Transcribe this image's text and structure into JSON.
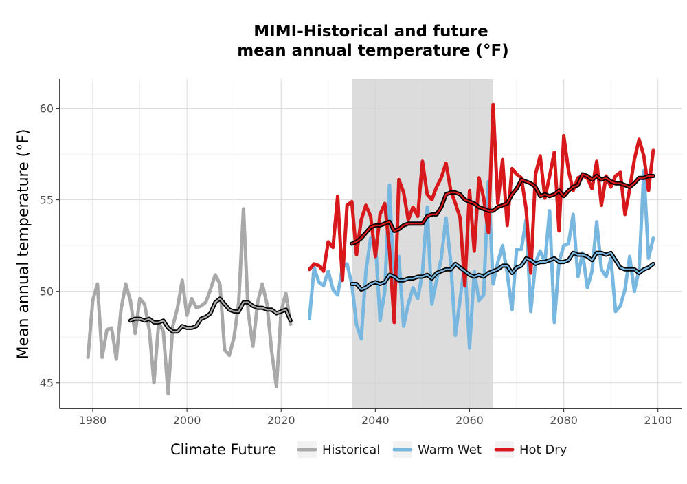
{
  "chart_data": {
    "type": "line",
    "title_line1": "MIMI-Historical and future",
    "title_line2": "mean annual temperature (°F)",
    "xlabel": "",
    "ylabel": "Mean annual temperature (°F)",
    "xlim": [
      1973,
      2105
    ],
    "ylim": [
      43.6,
      61.6
    ],
    "x_ticks": [
      1980,
      2000,
      2020,
      2040,
      2060,
      2080,
      2100
    ],
    "y_ticks": [
      45,
      50,
      55,
      60
    ],
    "grid": true,
    "reference_period": [
      2035,
      2065
    ],
    "legend_title": "Climate Future",
    "legend_position": "bottom",
    "series": [
      {
        "name": "Historical",
        "color": "#a9a9a9",
        "x": [
          1979,
          1980,
          1981,
          1982,
          1983,
          1984,
          1985,
          1986,
          1987,
          1988,
          1989,
          1990,
          1991,
          1992,
          1993,
          1994,
          1995,
          1996,
          1997,
          1998,
          1999,
          2000,
          2001,
          2002,
          2003,
          2004,
          2005,
          2006,
          2007,
          2008,
          2009,
          2010,
          2011,
          2012,
          2013,
          2014,
          2015,
          2016,
          2017,
          2018,
          2019,
          2020,
          2021,
          2022
        ],
        "values": [
          46.4,
          49.5,
          50.4,
          46.4,
          47.9,
          48.0,
          46.3,
          49.0,
          50.4,
          49.5,
          47.7,
          49.6,
          49.3,
          47.9,
          45.0,
          48.3,
          47.8,
          44.4,
          48.1,
          49.1,
          50.6,
          48.7,
          49.6,
          49.1,
          49.2,
          49.4,
          50.1,
          50.9,
          50.4,
          46.8,
          46.5,
          47.5,
          49.4,
          54.5,
          48.9,
          47.0,
          49.4,
          50.4,
          49.3,
          46.7,
          44.8,
          48.9,
          49.9,
          48.2
        ]
      },
      {
        "name": "Warm Wet",
        "color": "#78b8e0",
        "x": [
          2026,
          2027,
          2028,
          2029,
          2030,
          2031,
          2032,
          2033,
          2034,
          2035,
          2036,
          2037,
          2038,
          2039,
          2040,
          2041,
          2042,
          2043,
          2044,
          2045,
          2046,
          2047,
          2048,
          2049,
          2050,
          2051,
          2052,
          2053,
          2054,
          2055,
          2056,
          2057,
          2058,
          2059,
          2060,
          2061,
          2062,
          2063,
          2064,
          2065,
          2066,
          2067,
          2068,
          2069,
          2070,
          2071,
          2072,
          2073,
          2074,
          2075,
          2076,
          2077,
          2078,
          2079,
          2080,
          2081,
          2082,
          2083,
          2084,
          2085,
          2086,
          2087,
          2088,
          2089,
          2090,
          2091,
          2092,
          2093,
          2094,
          2095,
          2096,
          2097,
          2098,
          2099
        ],
        "values": [
          48.5,
          51.3,
          50.5,
          50.3,
          51.1,
          50.1,
          49.8,
          51.3,
          51.5,
          50.4,
          48.2,
          47.4,
          51.1,
          52.9,
          52.8,
          48.4,
          50.0,
          55.8,
          49.9,
          51.9,
          48.1,
          49.3,
          50.2,
          49.6,
          51.0,
          54.6,
          49.3,
          50.6,
          51.8,
          54.0,
          51.6,
          47.6,
          49.6,
          51.5,
          46.9,
          51.1,
          49.5,
          49.8,
          56.0,
          50.4,
          51.6,
          52.5,
          51.0,
          49.0,
          52.3,
          52.3,
          53.9,
          48.9,
          51.6,
          52.2,
          51.6,
          54.4,
          48.3,
          51.6,
          52.5,
          52.6,
          54.2,
          50.8,
          52.1,
          50.2,
          51.1,
          53.8,
          51.2,
          50.8,
          51.8,
          48.9,
          49.2,
          50.1,
          51.9,
          50.0,
          51.2,
          56.6,
          51.8,
          52.9
        ]
      },
      {
        "name": "Hot Dry",
        "color": "#d7191c",
        "x": [
          2026,
          2027,
          2028,
          2029,
          2030,
          2031,
          2032,
          2033,
          2034,
          2035,
          2036,
          2037,
          2038,
          2039,
          2040,
          2041,
          2042,
          2043,
          2044,
          2045,
          2046,
          2047,
          2048,
          2049,
          2050,
          2051,
          2052,
          2053,
          2054,
          2055,
          2056,
          2057,
          2058,
          2059,
          2060,
          2061,
          2062,
          2063,
          2064,
          2065,
          2066,
          2067,
          2068,
          2069,
          2070,
          2071,
          2072,
          2073,
          2074,
          2075,
          2076,
          2077,
          2078,
          2079,
          2080,
          2081,
          2082,
          2083,
          2084,
          2085,
          2086,
          2087,
          2088,
          2089,
          2090,
          2091,
          2092,
          2093,
          2094,
          2095,
          2096,
          2097,
          2098,
          2099
        ],
        "values": [
          51.2,
          51.5,
          51.4,
          51.1,
          52.7,
          52.4,
          55.2,
          50.6,
          54.7,
          54.9,
          52.0,
          53.9,
          54.7,
          54.1,
          51.9,
          54.2,
          54.8,
          52.3,
          48.3,
          56.1,
          55.4,
          53.9,
          54.6,
          54.1,
          57.1,
          55.3,
          55.0,
          55.7,
          56.2,
          57.0,
          55.5,
          54.8,
          54.0,
          50.3,
          55.5,
          52.2,
          56.2,
          55.1,
          53.2,
          60.2,
          54.8,
          57.2,
          53.6,
          56.7,
          56.4,
          56.2,
          54.5,
          51.0,
          56.4,
          57.4,
          55.1,
          56.3,
          57.6,
          53.3,
          58.5,
          56.6,
          55.5,
          56.2,
          56.3,
          56.2,
          55.6,
          57.1,
          54.7,
          56.3,
          55.7,
          56.3,
          56.5,
          54.2,
          55.6,
          57.2,
          58.3,
          57.4,
          55.5,
          57.7
        ]
      }
    ],
    "smoothed_series": [
      {
        "name": "Historical",
        "x": [
          1988,
          1989,
          1990,
          1991,
          1992,
          1993,
          1994,
          1995,
          1996,
          1997,
          1998,
          1999,
          2000,
          2001,
          2002,
          2003,
          2004,
          2005,
          2006,
          2007,
          2008,
          2009,
          2010,
          2011,
          2012,
          2013,
          2014,
          2015,
          2016,
          2017,
          2018,
          2019,
          2020,
          2021,
          2022
        ],
        "values": [
          48.4,
          48.5,
          48.5,
          48.4,
          48.5,
          48.3,
          48.3,
          48.4,
          48.0,
          47.8,
          47.8,
          48.1,
          48.0,
          48.0,
          48.1,
          48.5,
          48.6,
          48.8,
          49.4,
          49.6,
          49.3,
          49.0,
          48.9,
          48.9,
          49.4,
          49.4,
          49.2,
          49.1,
          49.1,
          49.0,
          49.0,
          48.8,
          48.9,
          49.0,
          48.4
        ]
      },
      {
        "name": "Warm Wet",
        "x": [
          2035,
          2036,
          2037,
          2038,
          2039,
          2040,
          2041,
          2042,
          2043,
          2044,
          2045,
          2046,
          2047,
          2048,
          2049,
          2050,
          2051,
          2052,
          2053,
          2054,
          2055,
          2056,
          2057,
          2058,
          2059,
          2060,
          2061,
          2062,
          2063,
          2064,
          2065,
          2066,
          2067,
          2068,
          2069,
          2070,
          2071,
          2072,
          2073,
          2074,
          2075,
          2076,
          2077,
          2078,
          2079,
          2080,
          2081,
          2082,
          2083,
          2084,
          2085,
          2086,
          2087,
          2088,
          2089,
          2090,
          2091,
          2092,
          2093,
          2094,
          2095,
          2096,
          2097,
          2098,
          2099
        ],
        "values": [
          50.4,
          50.4,
          50.1,
          50.2,
          50.4,
          50.5,
          50.4,
          50.5,
          50.9,
          50.8,
          50.6,
          50.6,
          50.7,
          50.7,
          50.8,
          50.8,
          50.9,
          50.7,
          51.0,
          51.1,
          51.2,
          51.2,
          51.5,
          51.3,
          51.1,
          50.9,
          50.8,
          50.9,
          50.8,
          51.0,
          51.1,
          51.2,
          51.4,
          51.4,
          51.0,
          51.3,
          51.4,
          51.8,
          51.7,
          51.5,
          51.6,
          51.6,
          51.7,
          51.8,
          51.6,
          51.6,
          51.7,
          52.1,
          52.0,
          52.0,
          51.9,
          51.7,
          52.1,
          52.1,
          52.0,
          52.1,
          51.7,
          51.3,
          51.2,
          51.2,
          51.2,
          51.0,
          51.2,
          51.3,
          51.5
        ]
      },
      {
        "name": "Hot Dry",
        "x": [
          2035,
          2036,
          2037,
          2038,
          2039,
          2040,
          2041,
          2042,
          2043,
          2044,
          2045,
          2046,
          2047,
          2048,
          2049,
          2050,
          2051,
          2052,
          2053,
          2054,
          2055,
          2056,
          2057,
          2058,
          2059,
          2060,
          2061,
          2062,
          2063,
          2064,
          2065,
          2066,
          2067,
          2068,
          2069,
          2070,
          2071,
          2072,
          2073,
          2074,
          2075,
          2076,
          2077,
          2078,
          2079,
          2080,
          2081,
          2082,
          2083,
          2084,
          2085,
          2086,
          2087,
          2088,
          2089,
          2090,
          2091,
          2092,
          2093,
          2094,
          2095,
          2096,
          2097,
          2098,
          2099
        ],
        "values": [
          52.6,
          52.7,
          52.9,
          53.2,
          53.5,
          53.6,
          53.6,
          53.7,
          53.8,
          53.3,
          53.4,
          53.6,
          53.7,
          53.7,
          53.7,
          53.7,
          54.1,
          54.2,
          54.2,
          54.6,
          55.3,
          55.4,
          55.4,
          55.3,
          55.0,
          54.9,
          54.8,
          54.6,
          54.5,
          54.4,
          54.4,
          54.6,
          54.7,
          54.8,
          55.3,
          55.6,
          56.1,
          56.0,
          55.9,
          55.7,
          55.2,
          55.3,
          55.2,
          55.3,
          55.5,
          55.2,
          55.5,
          55.7,
          55.8,
          56.4,
          56.3,
          56.1,
          56.3,
          56.1,
          56.2,
          56.0,
          55.9,
          55.9,
          55.8,
          55.7,
          55.9,
          56.2,
          56.2,
          56.3,
          56.3
        ]
      }
    ]
  }
}
